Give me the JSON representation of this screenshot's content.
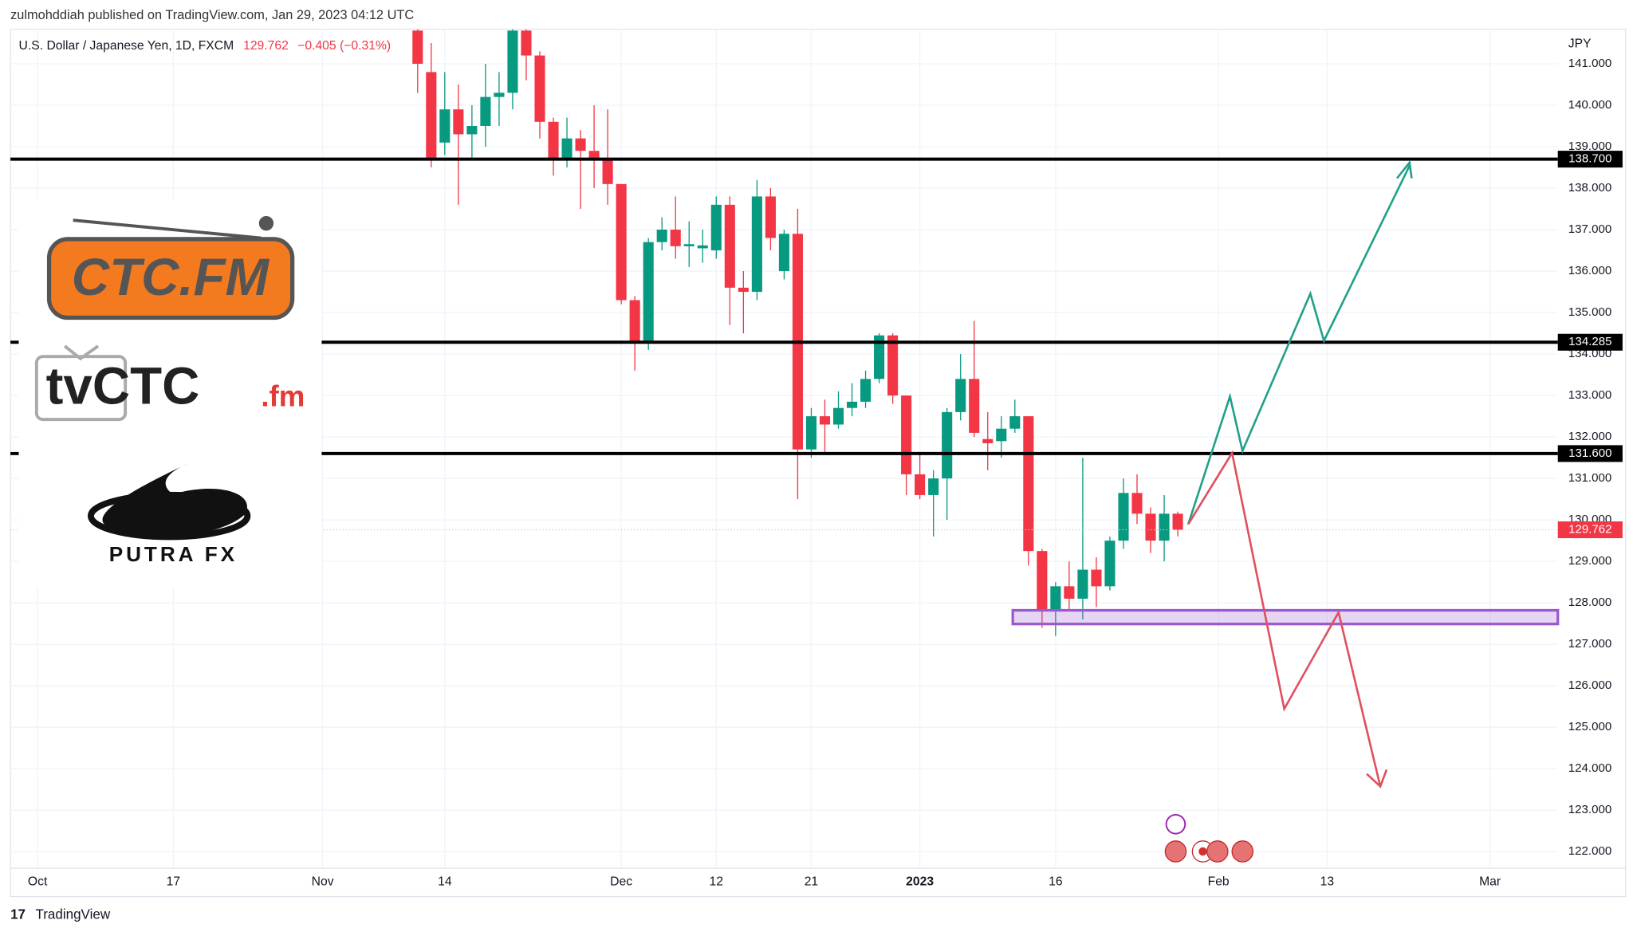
{
  "header": {
    "published": "zulmohddiah published on TradingView.com, Jan 29, 2023 04:12 UTC",
    "symbol": "U.S. Dollar / Japanese Yen, 1D, FXCM",
    "change": "−0.405 (−0.31%)"
  },
  "logos": [
    "CTC.FM",
    "tvCTC",
    ".fm",
    "PUTRA FX"
  ],
  "footer": "TradingView",
  "chart_data": {
    "type": "candlestick",
    "currency": "JPY",
    "x": [
      28,
      29,
      30,
      31,
      32,
      33,
      34,
      35,
      36,
      37,
      38,
      39,
      40,
      41,
      42,
      43,
      44,
      45,
      46,
      47,
      48,
      49,
      50,
      51,
      52,
      53,
      54,
      55,
      56,
      57,
      58,
      59,
      60,
      61,
      62,
      63,
      64,
      65,
      66,
      67,
      68,
      69,
      70,
      71,
      72,
      73,
      74,
      75,
      76,
      77,
      78,
      79,
      80,
      81,
      82,
      83,
      84
    ],
    "open": [
      141.8,
      140.8,
      139.1,
      139.9,
      139.3,
      139.5,
      140.2,
      140.3,
      141.8,
      141.2,
      139.6,
      138.7,
      139.2,
      138.9,
      138.7,
      138.1,
      135.3,
      134.3,
      136.7,
      137.0,
      136.6,
      136.55,
      136.5,
      137.6,
      135.6,
      135.5,
      137.8,
      136.0,
      136.9,
      131.7,
      132.5,
      132.3,
      132.7,
      132.85,
      133.4,
      134.45,
      133.0,
      131.1,
      130.6,
      131.0,
      132.6,
      133.4,
      131.95,
      131.9,
      132.2,
      132.5,
      129.25,
      127.8,
      128.4,
      128.1,
      128.8,
      128.4,
      129.5,
      130.65,
      130.15,
      129.5,
      130.15
    ],
    "high": [
      142.0,
      141.5,
      140.8,
      140.5,
      140.0,
      141.0,
      140.8,
      142.0,
      142.0,
      141.3,
      139.7,
      139.7,
      139.4,
      140.0,
      139.9,
      138.1,
      135.4,
      136.8,
      137.3,
      137.8,
      137.2,
      137.0,
      137.8,
      137.8,
      136.0,
      138.2,
      138.0,
      137.0,
      137.5,
      132.7,
      132.9,
      133.1,
      133.3,
      133.6,
      134.5,
      134.5,
      133.0,
      131.6,
      131.2,
      132.7,
      134.0,
      134.8,
      132.6,
      132.5,
      132.9,
      132.5,
      129.3,
      128.5,
      129.0,
      131.5,
      129.1,
      129.6,
      131.0,
      131.1,
      130.3,
      130.6,
      130.2
    ],
    "low": [
      140.3,
      138.5,
      138.8,
      137.6,
      138.7,
      139.0,
      139.5,
      139.9,
      140.6,
      139.2,
      138.3,
      138.5,
      137.5,
      138.0,
      137.6,
      135.2,
      133.6,
      134.1,
      136.5,
      136.3,
      136.1,
      136.2,
      136.3,
      134.7,
      134.5,
      135.3,
      136.5,
      135.8,
      130.5,
      131.5,
      131.6,
      132.2,
      132.5,
      132.7,
      133.3,
      132.8,
      130.6,
      130.5,
      129.6,
      130.0,
      132.4,
      132.0,
      131.2,
      131.5,
      132.1,
      128.9,
      127.4,
      127.2,
      127.8,
      127.6,
      127.9,
      128.3,
      129.3,
      129.9,
      129.2,
      129.0,
      129.6
    ],
    "close": [
      141.0,
      138.7,
      139.9,
      139.3,
      139.5,
      140.2,
      140.3,
      141.8,
      141.2,
      139.6,
      138.7,
      139.2,
      138.9,
      138.7,
      138.1,
      135.3,
      134.3,
      136.7,
      137.0,
      136.6,
      136.65,
      136.62,
      137.6,
      135.6,
      135.5,
      137.8,
      136.8,
      136.9,
      131.7,
      132.5,
      132.3,
      132.7,
      132.85,
      133.4,
      134.45,
      133.0,
      131.1,
      130.6,
      131.0,
      132.6,
      133.4,
      132.1,
      131.85,
      132.2,
      132.5,
      129.25,
      127.8,
      128.4,
      128.1,
      128.8,
      128.4,
      129.5,
      130.65,
      130.15,
      129.5,
      130.15,
      129.76
    ],
    "up_color": "#089981",
    "down_color": "#f23645",
    "xlim": [
      -2,
      112
    ],
    "ylim": [
      121.6,
      141.83
    ],
    "xticks": [
      {
        "value": 0,
        "label": "Oct"
      },
      {
        "value": 10,
        "label": "17"
      },
      {
        "value": 21,
        "label": "Nov"
      },
      {
        "value": 30,
        "label": "14"
      },
      {
        "value": 43,
        "label": "Dec"
      },
      {
        "value": 50,
        "label": "12"
      },
      {
        "value": 57,
        "label": "21"
      },
      {
        "value": 65,
        "label": "2023"
      },
      {
        "value": 75,
        "label": "16"
      },
      {
        "value": 87,
        "label": "Feb"
      },
      {
        "value": 95,
        "label": "13"
      },
      {
        "value": 107,
        "label": "Mar"
      }
    ],
    "yticks": [
      {
        "value": 122,
        "label": "122.000"
      },
      {
        "value": 123,
        "label": "123.000"
      },
      {
        "value": 124,
        "label": "124.000"
      },
      {
        "value": 125,
        "label": "125.000"
      },
      {
        "value": 126,
        "label": "126.000"
      },
      {
        "value": 127,
        "label": "127.000"
      },
      {
        "value": 128,
        "label": "128.000"
      },
      {
        "value": 129,
        "label": "129.000"
      },
      {
        "value": 130,
        "label": "130.000"
      },
      {
        "value": 131,
        "label": "131.000"
      },
      {
        "value": 132,
        "label": "132.000"
      },
      {
        "value": 133,
        "label": "133.000"
      },
      {
        "value": 134,
        "label": "134.000"
      },
      {
        "value": 135,
        "label": "135.000"
      },
      {
        "value": 136,
        "label": "136.000"
      },
      {
        "value": 137,
        "label": "137.000"
      },
      {
        "value": 138,
        "label": "138.000"
      },
      {
        "value": 139,
        "label": "139.000"
      },
      {
        "value": 140,
        "label": "140.000"
      },
      {
        "value": 141,
        "label": "141.000"
      }
    ],
    "levels": [
      {
        "value": 138.7,
        "label": "138.700"
      },
      {
        "value": 134.285,
        "label": "134.285"
      },
      {
        "value": 131.6,
        "label": "131.600"
      }
    ],
    "last_price": {
      "value": 129.762,
      "label": "129.762"
    },
    "zone": {
      "low": 127.49,
      "high": 127.82,
      "color": "#9b59d0"
    },
    "grid": true
  }
}
